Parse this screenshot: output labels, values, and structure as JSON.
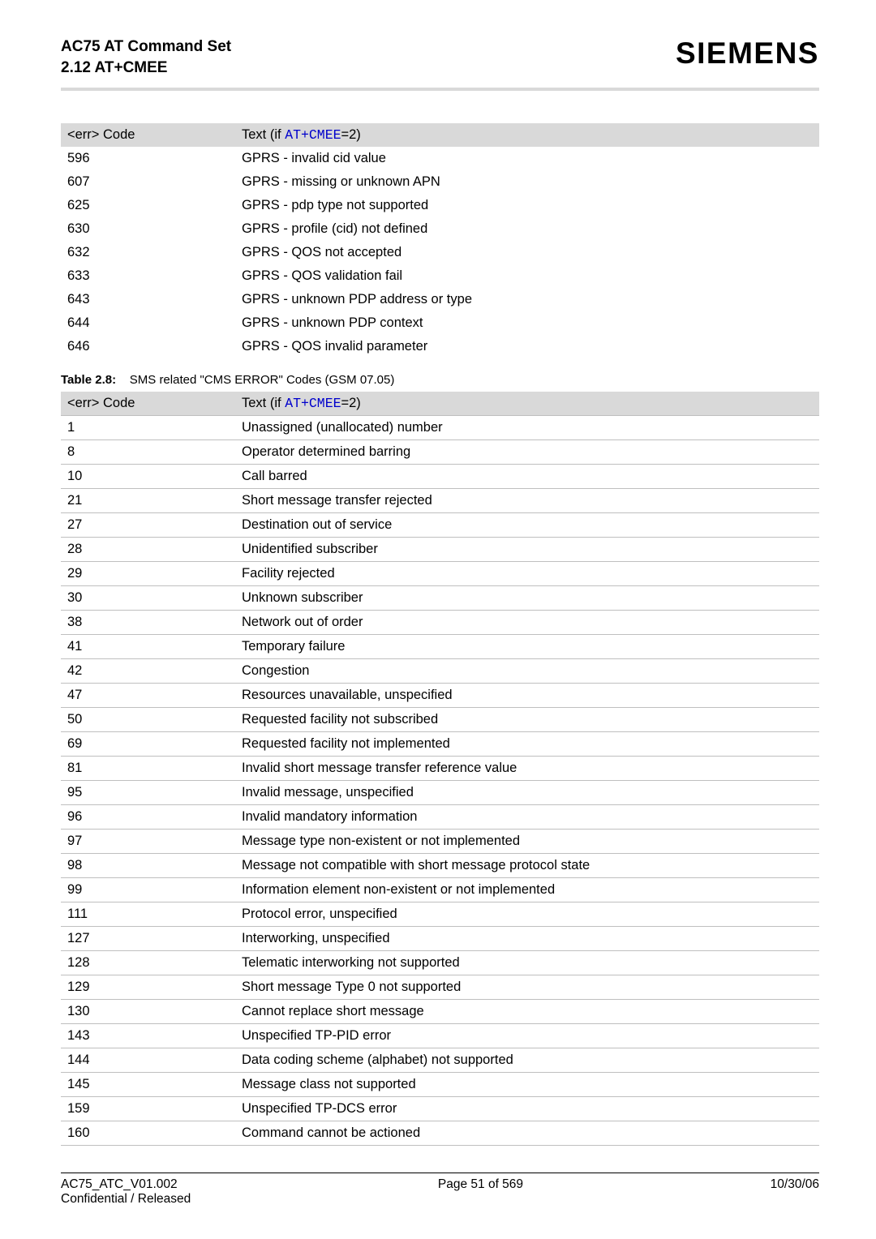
{
  "header": {
    "title": "AC75 AT Command Set",
    "subtitle": "2.12 AT+CMEE",
    "brand": "SIEMENS"
  },
  "colors": {
    "header_bar": "#d9d9d9",
    "row_border": "#bfbfbf",
    "link": "#0000cc",
    "text": "#000000",
    "bg": "#ffffff"
  },
  "table1": {
    "head_code": "<err> Code",
    "head_text_prefix": "Text (if ",
    "head_text_link": "AT+CMEE",
    "head_text_suffix": "=2)",
    "rows": [
      {
        "code": "596",
        "text": "GPRS - invalid cid value"
      },
      {
        "code": "607",
        "text": "GPRS - missing or unknown APN"
      },
      {
        "code": "625",
        "text": "GPRS - pdp type not supported"
      },
      {
        "code": "630",
        "text": "GPRS - profile (cid) not defined"
      },
      {
        "code": "632",
        "text": "GPRS - QOS not accepted"
      },
      {
        "code": "633",
        "text": "GPRS - QOS validation fail"
      },
      {
        "code": "643",
        "text": "GPRS - unknown PDP address or type"
      },
      {
        "code": "644",
        "text": "GPRS - unknown PDP context"
      },
      {
        "code": "646",
        "text": "GPRS - QOS invalid parameter"
      }
    ]
  },
  "caption": {
    "label": "Table 2.8:",
    "text": "SMS related \"CMS ERROR\" Codes (GSM 07.05)"
  },
  "table2": {
    "head_code": "<err> Code",
    "head_text_prefix": "Text (if ",
    "head_text_link": "AT+CMEE",
    "head_text_suffix": "=2)",
    "rows": [
      {
        "code": "1",
        "text": "Unassigned (unallocated) number"
      },
      {
        "code": "8",
        "text": "Operator determined barring"
      },
      {
        "code": "10",
        "text": "Call barred"
      },
      {
        "code": "21",
        "text": "Short message transfer rejected"
      },
      {
        "code": "27",
        "text": "Destination out of service"
      },
      {
        "code": "28",
        "text": "Unidentified subscriber"
      },
      {
        "code": "29",
        "text": "Facility rejected"
      },
      {
        "code": "30",
        "text": "Unknown subscriber"
      },
      {
        "code": "38",
        "text": "Network out of order"
      },
      {
        "code": "41",
        "text": "Temporary failure"
      },
      {
        "code": "42",
        "text": "Congestion"
      },
      {
        "code": "47",
        "text": "Resources unavailable, unspecified"
      },
      {
        "code": "50",
        "text": "Requested facility not subscribed"
      },
      {
        "code": "69",
        "text": "Requested facility not implemented"
      },
      {
        "code": "81",
        "text": "Invalid short message transfer reference value"
      },
      {
        "code": "95",
        "text": "Invalid message, unspecified"
      },
      {
        "code": "96",
        "text": "Invalid mandatory information"
      },
      {
        "code": "97",
        "text": "Message type non-existent or not implemented"
      },
      {
        "code": "98",
        "text": "Message not compatible with short message protocol state"
      },
      {
        "code": "99",
        "text": "Information element non-existent or not implemented"
      },
      {
        "code": "111",
        "text": "Protocol error, unspecified"
      },
      {
        "code": "127",
        "text": "Interworking, unspecified"
      },
      {
        "code": "128",
        "text": "Telematic interworking not supported"
      },
      {
        "code": "129",
        "text": "Short message Type 0 not supported"
      },
      {
        "code": "130",
        "text": "Cannot replace short message"
      },
      {
        "code": "143",
        "text": "Unspecified TP-PID error"
      },
      {
        "code": "144",
        "text": "Data coding scheme (alphabet) not supported"
      },
      {
        "code": "145",
        "text": "Message class not supported"
      },
      {
        "code": "159",
        "text": "Unspecified TP-DCS error"
      },
      {
        "code": "160",
        "text": "Command cannot be actioned"
      }
    ]
  },
  "footer": {
    "left1": "AC75_ATC_V01.002",
    "left2": "Confidential / Released",
    "center": "Page 51 of 569",
    "right": "10/30/06"
  }
}
